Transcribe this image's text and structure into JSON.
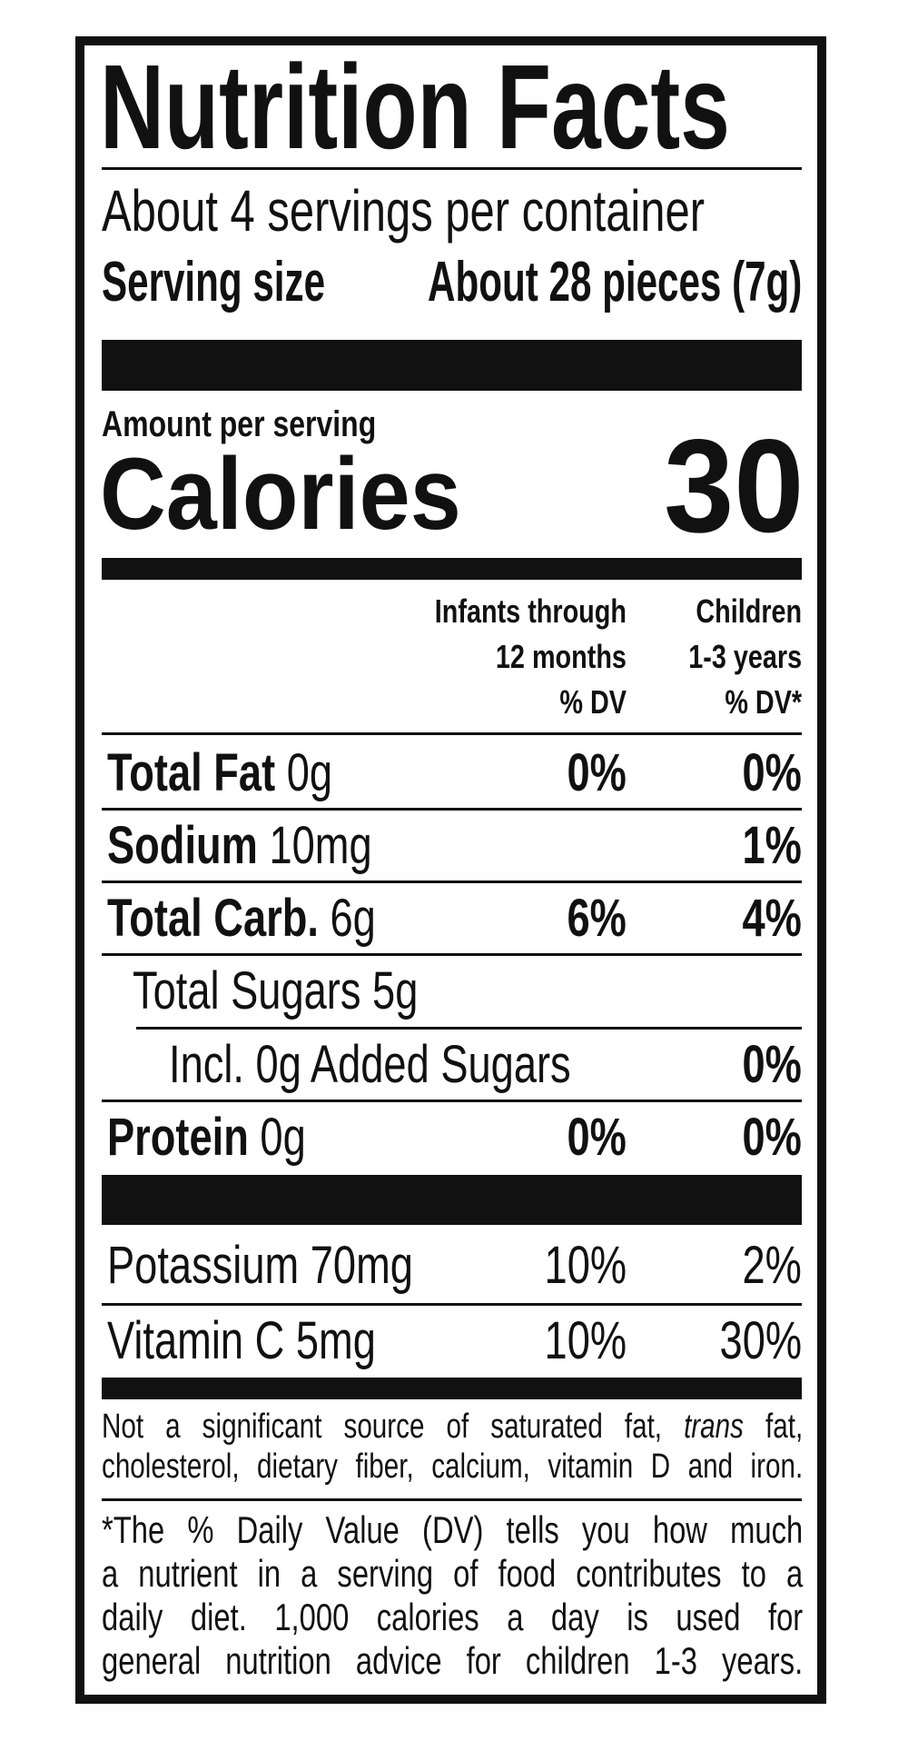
{
  "title": "Nutrition Facts",
  "servings_per_container": "About 4 servings per container",
  "serving_size_label": "Serving size",
  "serving_size_value": "About 28 pieces (7g)",
  "amount_per_serving": "Amount per serving",
  "calories_label": "Calories",
  "calories_value": "30",
  "columns": {
    "infants": "Infants through\n12 months\n% DV",
    "children": "Children\n1-3 years\n% DV*"
  },
  "nutrients": [
    {
      "name": "Total Fat",
      "amount": "0g",
      "infants": "0%",
      "children": "0%"
    },
    {
      "name": "Sodium",
      "amount": "10mg",
      "infants": "",
      "children": "1%"
    },
    {
      "name": "Total Carb.",
      "amount": "6g",
      "infants": "6%",
      "children": "4%"
    },
    {
      "name": "",
      "amount": "Total Sugars 5g",
      "infants": "",
      "children": ""
    },
    {
      "name": "",
      "amount": "Incl. 0g Added Sugars",
      "infants": "",
      "children": "0%"
    },
    {
      "name": "Protein",
      "amount": "0g",
      "infants": "0%",
      "children": "0%"
    }
  ],
  "minerals": [
    {
      "label": "Potassium 70mg",
      "infants": "10%",
      "children": "2%"
    },
    {
      "label": "Vitamin C 5mg",
      "infants": "10%",
      "children": "30%"
    }
  ],
  "not_significant": {
    "line1_a": "Not a significant source of saturated fat, ",
    "line1_italic": "trans",
    "line1_b": " fat,",
    "line2": "cholesterol, dietary fiber, calcium, vitamin D and iron."
  },
  "footnote": [
    "*The % Daily Value (DV) tells you how much",
    "a nutrient in a serving of food contributes to a",
    "daily diet. 1,000 calories a day is used for",
    "general nutrition advice for children 1-3 years."
  ]
}
